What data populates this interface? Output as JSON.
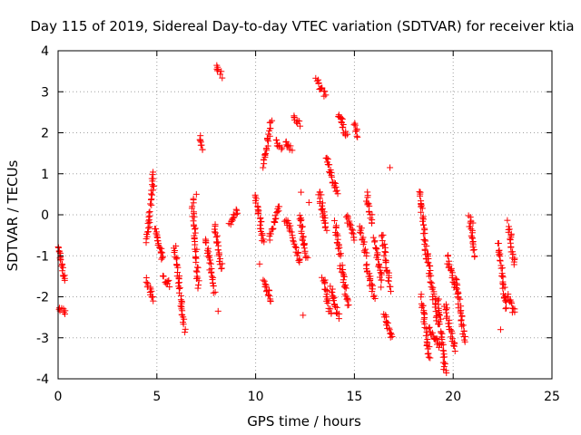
{
  "chart_data": {
    "type": "scatter",
    "title": "Day 115 of 2019, Sidereal Day-to-day VTEC variation (SDTVAR) for receiver ktia",
    "xlabel": "GPS time / hours",
    "ylabel": "SDTVAR / TECUs",
    "xlim": [
      0,
      25
    ],
    "ylim": [
      -4,
      4
    ],
    "xticks": [
      "0",
      "5",
      "10",
      "15",
      "20",
      "25"
    ],
    "yticks": [
      "-4",
      "-3",
      "-2",
      "-1",
      "0",
      "1",
      "2",
      "3",
      "4"
    ],
    "grid": true,
    "marker": "+",
    "marker_color": "#ff0000",
    "series": [
      {
        "name": "SDTVAR",
        "segments": [
          {
            "x0": 0.0,
            "x1": 0.35,
            "y0": -0.7,
            "y1": -1.6
          },
          {
            "x0": 0.0,
            "x1": 0.35,
            "y0": -2.3,
            "y1": -2.4
          },
          {
            "x0": 4.5,
            "x1": 4.85,
            "y0": -0.7,
            "y1": 1.05
          },
          {
            "x0": 4.5,
            "x1": 4.8,
            "y0": -1.6,
            "y1": -2.1
          },
          {
            "x0": 4.9,
            "x1": 5.3,
            "y0": -0.3,
            "y1": -1.1
          },
          {
            "x0": 5.3,
            "x1": 5.6,
            "y0": -1.5,
            "y1": -1.7
          },
          {
            "x0": 5.9,
            "x1": 6.4,
            "y0": -0.8,
            "y1": -2.8
          },
          {
            "x0": 6.8,
            "x1": 7.1,
            "y0": 0.4,
            "y1": -1.8
          },
          {
            "x0": 7.15,
            "x1": 7.35,
            "y0": 1.9,
            "y1": 1.6
          },
          {
            "x0": 7.5,
            "x1": 7.9,
            "y0": -0.6,
            "y1": -1.9
          },
          {
            "x0": 8.0,
            "x1": 8.25,
            "y0": 3.6,
            "y1": 3.4
          },
          {
            "x0": 7.9,
            "x1": 8.3,
            "y0": -0.3,
            "y1": -1.3
          },
          {
            "x0": 8.7,
            "x1": 9.1,
            "y0": -0.2,
            "y1": 0.1
          },
          {
            "x0": 10.0,
            "x1": 10.4,
            "y0": 0.5,
            "y1": -0.7
          },
          {
            "x0": 10.4,
            "x1": 10.8,
            "y0": 1.2,
            "y1": 2.3
          },
          {
            "x0": 10.4,
            "x1": 10.8,
            "y0": -1.6,
            "y1": -2.1
          },
          {
            "x0": 10.7,
            "x1": 11.2,
            "y0": -0.6,
            "y1": 0.2
          },
          {
            "x0": 11.0,
            "x1": 11.3,
            "y0": 1.8,
            "y1": 1.6
          },
          {
            "x0": 11.5,
            "x1": 11.8,
            "y0": -0.1,
            "y1": -0.4
          },
          {
            "x0": 11.5,
            "x1": 11.8,
            "y0": 1.8,
            "y1": 1.6
          },
          {
            "x0": 11.9,
            "x1": 12.2,
            "y0": 2.4,
            "y1": 2.2
          },
          {
            "x0": 11.9,
            "x1": 12.2,
            "y0": -0.5,
            "y1": -1.2
          },
          {
            "x0": 12.2,
            "x1": 12.6,
            "y0": 0.0,
            "y1": -1.1
          },
          {
            "x0": 13.1,
            "x1": 13.5,
            "y0": 3.3,
            "y1": 2.9
          },
          {
            "x0": 13.2,
            "x1": 13.6,
            "y0": 0.6,
            "y1": -0.4
          },
          {
            "x0": 13.4,
            "x1": 13.8,
            "y0": -1.5,
            "y1": -2.4
          },
          {
            "x0": 13.6,
            "x1": 14.1,
            "y0": 1.4,
            "y1": 0.5
          },
          {
            "x0": 13.8,
            "x1": 14.2,
            "y0": -1.8,
            "y1": -2.5
          },
          {
            "x0": 14.0,
            "x1": 14.3,
            "y0": -0.2,
            "y1": -1.0
          },
          {
            "x0": 14.2,
            "x1": 14.6,
            "y0": 2.5,
            "y1": 1.9
          },
          {
            "x0": 14.3,
            "x1": 14.7,
            "y0": -1.2,
            "y1": -2.2
          },
          {
            "x0": 14.6,
            "x1": 15.0,
            "y0": 0.0,
            "y1": -0.6
          },
          {
            "x0": 15.0,
            "x1": 15.2,
            "y0": 2.2,
            "y1": 1.9
          },
          {
            "x0": 15.3,
            "x1": 15.6,
            "y0": -0.3,
            "y1": -1.0
          },
          {
            "x0": 15.6,
            "x1": 15.9,
            "y0": 0.5,
            "y1": -0.2
          },
          {
            "x0": 15.6,
            "x1": 16.0,
            "y0": -1.2,
            "y1": -2.0
          },
          {
            "x0": 16.0,
            "x1": 16.4,
            "y0": -0.6,
            "y1": -1.7
          },
          {
            "x0": 16.4,
            "x1": 16.8,
            "y0": -0.5,
            "y1": -1.8
          },
          {
            "x0": 16.5,
            "x1": 16.9,
            "y0": -2.4,
            "y1": -3.0
          },
          {
            "x0": 18.3,
            "x1": 18.7,
            "y0": 0.6,
            "y1": -1.2
          },
          {
            "x0": 18.4,
            "x1": 18.8,
            "y0": -2.0,
            "y1": -3.5
          },
          {
            "x0": 18.7,
            "x1": 19.2,
            "y0": -1.0,
            "y1": -2.6
          },
          {
            "x0": 18.8,
            "x1": 19.3,
            "y0": -2.8,
            "y1": -3.2
          },
          {
            "x0": 19.2,
            "x1": 19.6,
            "y0": -2.0,
            "y1": -3.9
          },
          {
            "x0": 19.6,
            "x1": 20.1,
            "y0": -2.2,
            "y1": -3.3
          },
          {
            "x0": 19.7,
            "x1": 20.1,
            "y0": -1.0,
            "y1": -1.8
          },
          {
            "x0": 20.1,
            "x1": 20.6,
            "y0": -1.5,
            "y1": -3.1
          },
          {
            "x0": 20.8,
            "x1": 21.1,
            "y0": 0.0,
            "y1": -1.0
          },
          {
            "x0": 22.3,
            "x1": 22.7,
            "y0": -0.7,
            "y1": -2.3
          },
          {
            "x0": 22.8,
            "x1": 23.1,
            "y0": -0.2,
            "y1": -1.2
          },
          {
            "x0": 22.8,
            "x1": 23.1,
            "y0": -2.0,
            "y1": -2.4
          }
        ],
        "points": [
          {
            "x": 5.6,
            "y": -1.6
          },
          {
            "x": 7.0,
            "y": 0.5
          },
          {
            "x": 8.1,
            "y": -2.35
          },
          {
            "x": 10.2,
            "y": -1.2
          },
          {
            "x": 12.3,
            "y": 0.55
          },
          {
            "x": 12.4,
            "y": -2.45
          },
          {
            "x": 12.7,
            "y": 0.3
          },
          {
            "x": 13.4,
            "y": -0.05
          },
          {
            "x": 16.8,
            "y": 1.15
          },
          {
            "x": 22.4,
            "y": -2.8
          },
          {
            "x": 21.0,
            "y": -0.2
          }
        ]
      }
    ]
  }
}
